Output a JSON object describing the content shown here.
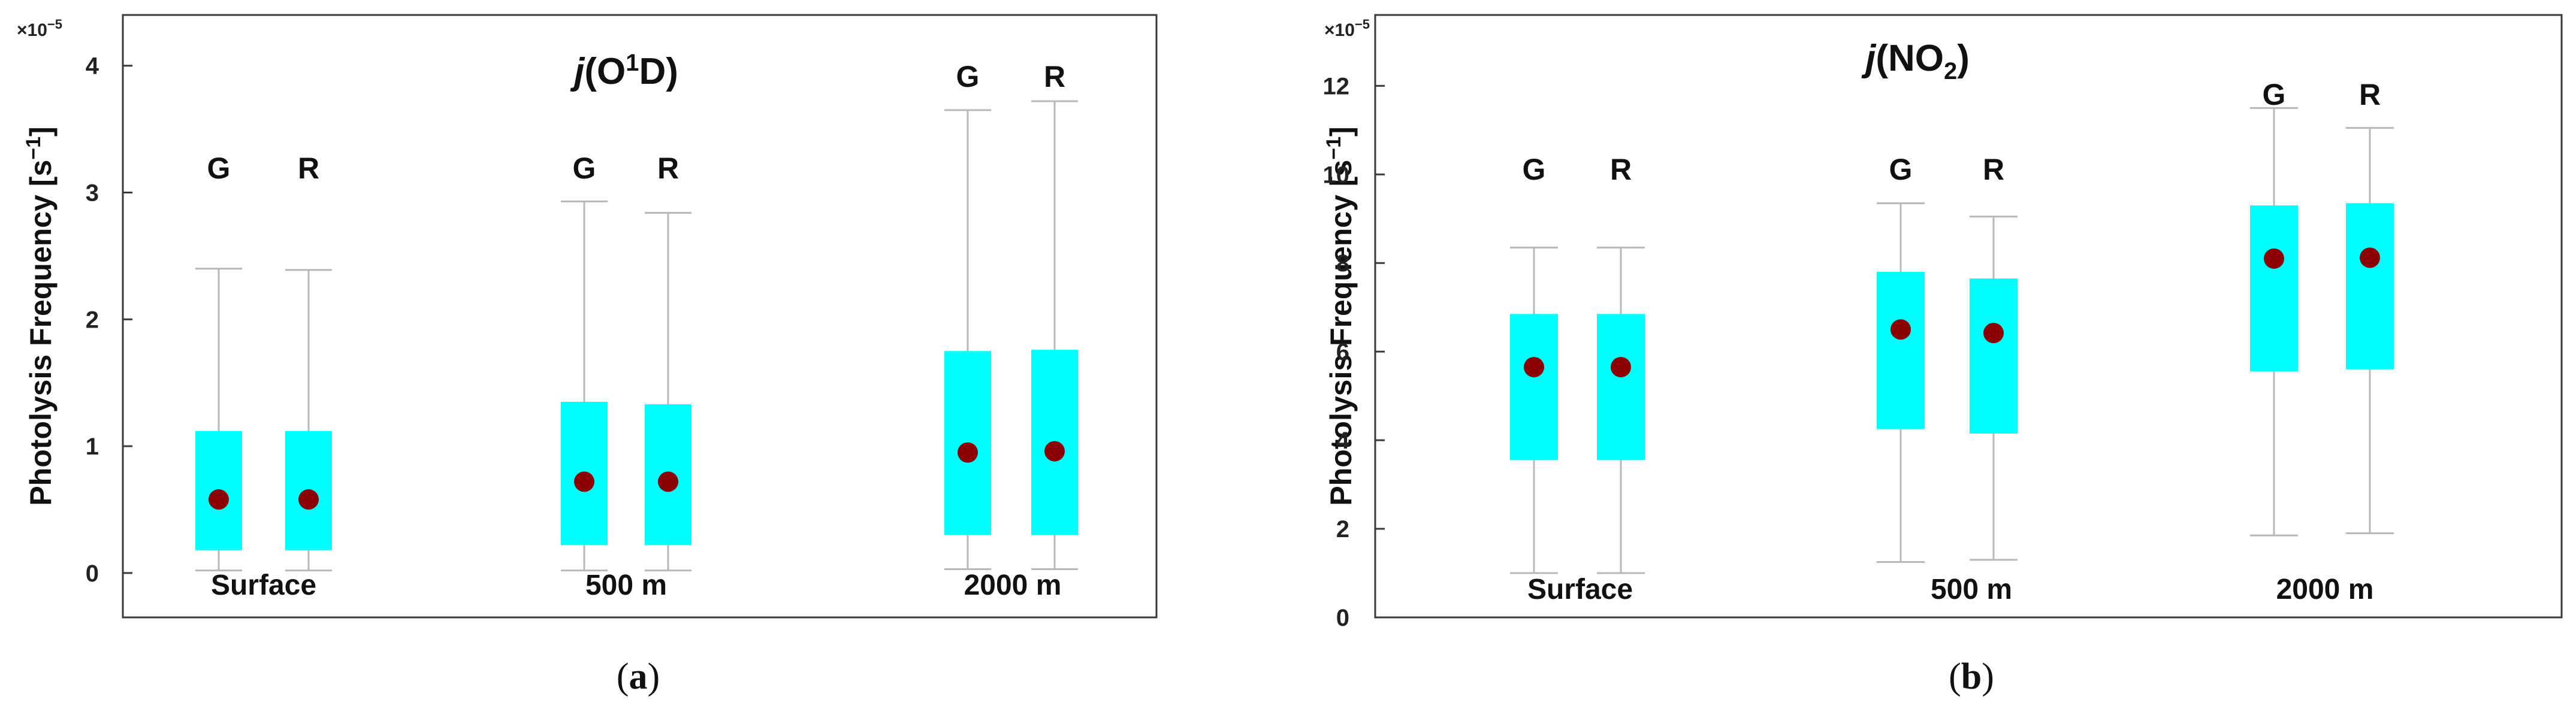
{
  "figure": {
    "panels": [
      {
        "tag_open": "(",
        "tag_letter": "a",
        "tag_close": ")"
      },
      {
        "tag_open": "(",
        "tag_letter": "b",
        "tag_close": ")"
      }
    ]
  },
  "chart_data": [
    {
      "type": "boxplot",
      "title_prefix": "j",
      "title_species": "(O",
      "title_sup": "1",
      "title_suffix": "D)",
      "ylabel": "Photolysis Frequency [s",
      "ylabel_sup": "−1",
      "ylabel_close": "]",
      "scale_factor": "×10",
      "scale_exp": "−5",
      "ylim": [
        -0.35,
        4.4
      ],
      "yticks": [
        0,
        1,
        2,
        3,
        4
      ],
      "ytick_labels": [
        "0",
        "1",
        "2",
        "3",
        "4"
      ],
      "groups": [
        {
          "label": "Surface",
          "boxes": [
            {
              "name": "G",
              "min": 0.02,
              "q1": 0.18,
              "mean": 0.58,
              "q3": 1.12,
              "max": 2.4
            },
            {
              "name": "R",
              "min": 0.02,
              "q1": 0.18,
              "mean": 0.58,
              "q3": 1.12,
              "max": 2.39
            }
          ]
        },
        {
          "label": "500 m",
          "boxes": [
            {
              "name": "G",
              "min": 0.02,
              "q1": 0.22,
              "mean": 0.72,
              "q3": 1.35,
              "max": 2.93
            },
            {
              "name": "R",
              "min": 0.02,
              "q1": 0.22,
              "mean": 0.72,
              "q3": 1.33,
              "max": 2.84
            }
          ]
        },
        {
          "label": "2000 m",
          "boxes": [
            {
              "name": "G",
              "min": 0.03,
              "q1": 0.3,
              "mean": 0.95,
              "q3": 1.75,
              "max": 3.65
            },
            {
              "name": "R",
              "min": 0.03,
              "q1": 0.3,
              "mean": 0.96,
              "q3": 1.76,
              "max": 3.72
            }
          ]
        }
      ]
    },
    {
      "type": "boxplot",
      "title_prefix": "j",
      "title_species": "(NO",
      "title_sub": "2",
      "title_suffix": ")",
      "ylabel": "Photolysis Frequency [s",
      "ylabel_sup": "−1",
      "ylabel_close": "]",
      "scale_factor": "×10",
      "scale_exp": "−5",
      "ylim": [
        0,
        13.6
      ],
      "yticks": [
        0,
        2,
        4,
        6,
        8,
        10,
        12
      ],
      "ytick_labels": [
        "0",
        "2",
        "4",
        "6",
        "8",
        "10",
        "12"
      ],
      "groups": [
        {
          "label": "Surface",
          "boxes": [
            {
              "name": "G",
              "min": 1.0,
              "q1": 3.55,
              "mean": 5.65,
              "q3": 6.85,
              "max": 8.35
            },
            {
              "name": "R",
              "min": 1.0,
              "q1": 3.55,
              "mean": 5.65,
              "q3": 6.85,
              "max": 8.35
            }
          ]
        },
        {
          "label": "500 m",
          "boxes": [
            {
              "name": "G",
              "min": 1.25,
              "q1": 4.25,
              "mean": 6.5,
              "q3": 7.8,
              "max": 9.35
            },
            {
              "name": "R",
              "min": 1.3,
              "q1": 4.15,
              "mean": 6.42,
              "q3": 7.65,
              "max": 9.05
            }
          ]
        },
        {
          "label": "2000 m",
          "boxes": [
            {
              "name": "G",
              "min": 1.85,
              "q1": 5.55,
              "mean": 8.1,
              "q3": 9.3,
              "max": 11.5
            },
            {
              "name": "R",
              "min": 1.9,
              "q1": 5.6,
              "mean": 8.12,
              "q3": 9.35,
              "max": 11.05
            }
          ]
        }
      ]
    }
  ]
}
